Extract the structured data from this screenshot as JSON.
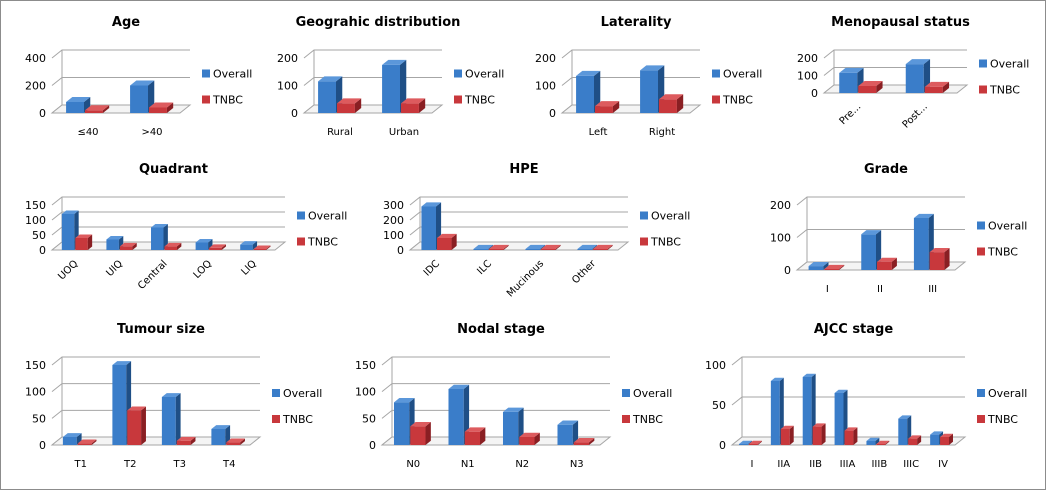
{
  "colors": {
    "overall": "#3a7dc9",
    "overall_side": "#1f4f86",
    "overall_top": "#5b97da",
    "tnbc": "#c8383c",
    "tnbc_side": "#8a1f23",
    "tnbc_top": "#dd5b5e",
    "grid": "#a6a6a6"
  },
  "chart_data": [
    {
      "id": "age",
      "type": "bar",
      "title": "Age",
      "categories": [
        "≤40",
        ">40"
      ],
      "ylim": [
        0,
        400
      ],
      "yticks": [
        0,
        200,
        400
      ],
      "series": [
        {
          "name": "Overall",
          "values": [
            80,
            200
          ]
        },
        {
          "name": "TNBC",
          "values": [
            20,
            40
          ]
        }
      ],
      "xlabel_rotated": false,
      "legend": "right",
      "grid": true
    },
    {
      "id": "geographic",
      "type": "bar",
      "title": "Geograhic distribution",
      "categories": [
        "Rural",
        "Urban"
      ],
      "ylim": [
        0,
        200
      ],
      "yticks": [
        0,
        100,
        200
      ],
      "series": [
        {
          "name": "Overall",
          "values": [
            115,
            175
          ]
        },
        {
          "name": "TNBC",
          "values": [
            35,
            35
          ]
        }
      ],
      "xlabel_rotated": false,
      "legend": "right",
      "grid": true
    },
    {
      "id": "laterality",
      "type": "bar",
      "title": "Laterality",
      "categories": [
        "Left",
        "Right"
      ],
      "ylim": [
        0,
        200
      ],
      "yticks": [
        0,
        100,
        200
      ],
      "series": [
        {
          "name": "Overall",
          "values": [
            135,
            155
          ]
        },
        {
          "name": "TNBC",
          "values": [
            25,
            50
          ]
        }
      ],
      "xlabel_rotated": false,
      "legend": "right",
      "grid": true
    },
    {
      "id": "menopausal",
      "type": "bar",
      "title": "Menopausal status",
      "categories": [
        "Pre...",
        "Post..."
      ],
      "ylim": [
        0,
        200
      ],
      "yticks": [
        0,
        100,
        200
      ],
      "series": [
        {
          "name": "Overall",
          "values": [
            115,
            165
          ]
        },
        {
          "name": "TNBC",
          "values": [
            40,
            35
          ]
        }
      ],
      "xlabel_rotated": true,
      "legend": "right",
      "grid": true
    },
    {
      "id": "quadrant",
      "type": "bar",
      "title": "Quadrant",
      "categories": [
        "UOQ",
        "UIQ",
        "Central",
        "LOQ",
        "LIQ"
      ],
      "ylim": [
        0,
        150
      ],
      "yticks": [
        0,
        50,
        100,
        150
      ],
      "series": [
        {
          "name": "Overall",
          "values": [
            120,
            35,
            75,
            25,
            18
          ]
        },
        {
          "name": "TNBC",
          "values": [
            40,
            12,
            12,
            7,
            3
          ]
        }
      ],
      "xlabel_rotated": true,
      "legend": "right",
      "grid": true
    },
    {
      "id": "hpe",
      "type": "bar",
      "title": "HPE",
      "categories": [
        "IDC",
        "ILC",
        "Mucinous",
        "Other"
      ],
      "ylim": [
        0,
        300
      ],
      "yticks": [
        0,
        100,
        200,
        300
      ],
      "series": [
        {
          "name": "Overall",
          "values": [
            290,
            3,
            3,
            3
          ]
        },
        {
          "name": "TNBC",
          "values": [
            80,
            1,
            1,
            1
          ]
        }
      ],
      "xlabel_rotated": true,
      "legend": "right",
      "grid": true
    },
    {
      "id": "grade",
      "type": "bar",
      "title": "Grade",
      "categories": [
        "I",
        "II",
        "III"
      ],
      "ylim": [
        0,
        200
      ],
      "yticks": [
        0,
        100,
        200
      ],
      "series": [
        {
          "name": "Overall",
          "values": [
            12,
            110,
            160
          ]
        },
        {
          "name": "TNBC",
          "values": [
            3,
            25,
            55
          ]
        }
      ],
      "xlabel_rotated": false,
      "legend": "right",
      "grid": true
    },
    {
      "id": "tumour",
      "type": "bar",
      "title": "Tumour size",
      "categories": [
        "T1",
        "T2",
        "T3",
        "T4"
      ],
      "ylim": [
        0,
        150
      ],
      "yticks": [
        0,
        50,
        100,
        150
      ],
      "series": [
        {
          "name": "Overall",
          "values": [
            15,
            150,
            90,
            30
          ]
        },
        {
          "name": "TNBC",
          "values": [
            3,
            65,
            8,
            5
          ]
        }
      ],
      "xlabel_rotated": false,
      "legend": "right",
      "grid": true
    },
    {
      "id": "nodal",
      "type": "bar",
      "title": "Nodal stage",
      "categories": [
        "N0",
        "N1",
        "N2",
        "N3"
      ],
      "ylim": [
        0,
        150
      ],
      "yticks": [
        0,
        50,
        100,
        150
      ],
      "series": [
        {
          "name": "Overall",
          "values": [
            80,
            105,
            62,
            38
          ]
        },
        {
          "name": "TNBC",
          "values": [
            35,
            25,
            15,
            5
          ]
        }
      ],
      "xlabel_rotated": false,
      "legend": "right",
      "grid": true
    },
    {
      "id": "ajcc",
      "type": "bar",
      "title": "AJCC stage",
      "categories": [
        "I",
        "IIA",
        "IIB",
        "IIIA",
        "IIIB",
        "IIIC",
        "IV"
      ],
      "ylim": [
        0,
        100
      ],
      "yticks": [
        0,
        50,
        100
      ],
      "series": [
        {
          "name": "Overall",
          "values": [
            0,
            80,
            85,
            65,
            5,
            33,
            13
          ]
        },
        {
          "name": "TNBC",
          "values": [
            0,
            20,
            23,
            18,
            1,
            8,
            10
          ]
        }
      ],
      "xlabel_rotated": false,
      "legend": "right",
      "grid": true
    }
  ]
}
